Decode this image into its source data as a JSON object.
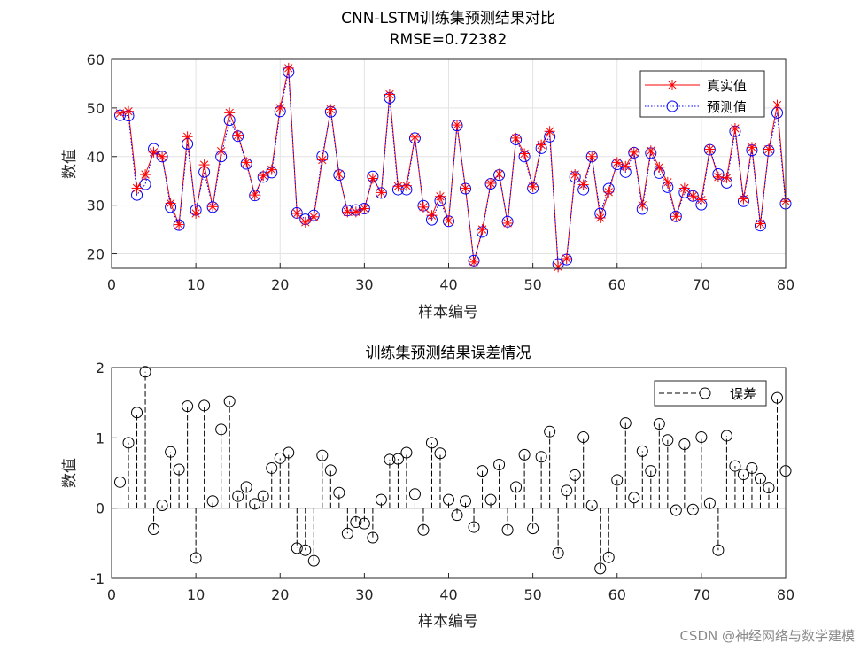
{
  "watermark": "CSDN @神经网络与数学建模",
  "chart_data": [
    {
      "type": "line",
      "title": "CNN-LSTM训练集预测结果对比",
      "subtitle": "RMSE=0.72382",
      "xlabel": "样本编号",
      "ylabel": "数值",
      "xlim": [
        0,
        80
      ],
      "ylim": [
        17,
        60
      ],
      "xticks": [
        "0",
        "10",
        "20",
        "30",
        "40",
        "50",
        "60",
        "70",
        "80"
      ],
      "yticks": [
        "20",
        "30",
        "40",
        "50",
        "60"
      ],
      "grid": true,
      "legend_position": "top-right",
      "colors": {
        "true": "#ff0000",
        "pred": "#0000ff"
      },
      "x": [
        1,
        2,
        3,
        4,
        5,
        6,
        7,
        8,
        9,
        10,
        11,
        12,
        13,
        14,
        15,
        16,
        17,
        18,
        19,
        20,
        21,
        22,
        23,
        24,
        25,
        26,
        27,
        28,
        29,
        30,
        31,
        32,
        33,
        34,
        35,
        36,
        37,
        38,
        39,
        40,
        41,
        42,
        43,
        44,
        45,
        46,
        47,
        48,
        49,
        50,
        51,
        52,
        53,
        54,
        55,
        56,
        57,
        58,
        59,
        60,
        61,
        62,
        63,
        64,
        65,
        66,
        67,
        68,
        69,
        70,
        71,
        72,
        73,
        74,
        75,
        76,
        77,
        78,
        79,
        80
      ],
      "series": [
        {
          "name": "真实值",
          "style": "red solid line, asterisk markers",
          "values": [
            48.9,
            49.3,
            33.5,
            36.3,
            40.9,
            40.0,
            30.4,
            26.0,
            44.1,
            28.3,
            38.3,
            29.7,
            41.1,
            49.0,
            44.4,
            38.8,
            32.1,
            36.1,
            37.3,
            50.0,
            58.2,
            28.3,
            26.5,
            27.6,
            39.3,
            49.7,
            36.4,
            28.6,
            28.6,
            29.3,
            35.5,
            32.6,
            52.8,
            33.9,
            34.0,
            44.0,
            29.6,
            27.9,
            31.8,
            26.8,
            46.5,
            33.5,
            18.3,
            25.0,
            34.5,
            36.4,
            26.3,
            43.8,
            40.6,
            33.8,
            42.4,
            45.2,
            17.3,
            19.0,
            36.3,
            34.2,
            40.0,
            27.4,
            32.7,
            38.8,
            38.0,
            40.9,
            30.0,
            41.2,
            37.8,
            34.7,
            27.7,
            33.5,
            31.9,
            31.1,
            41.5,
            35.8,
            35.6,
            45.8,
            31.3,
            41.9,
            26.2,
            41.5,
            50.6,
            30.8
          ]
        },
        {
          "name": "预测值",
          "style": "blue dotted line, circle markers",
          "values": [
            48.5,
            48.4,
            32.1,
            34.3,
            41.6,
            40.0,
            29.6,
            25.9,
            42.6,
            29.0,
            36.8,
            29.6,
            40.0,
            47.5,
            44.2,
            38.5,
            32.0,
            35.8,
            36.7,
            49.3,
            57.4,
            28.4,
            27.1,
            27.9,
            40.1,
            49.2,
            36.2,
            28.9,
            29.0,
            29.3,
            35.9,
            32.5,
            52.1,
            33.2,
            33.2,
            43.8,
            29.9,
            27.0,
            30.9,
            26.7,
            46.4,
            33.4,
            18.6,
            24.5,
            34.4,
            36.2,
            26.6,
            43.5,
            40.0,
            33.5,
            41.7,
            44.1,
            17.9,
            18.8,
            35.8,
            33.2,
            40.0,
            28.3,
            33.4,
            38.4,
            36.8,
            40.8,
            29.2,
            40.7,
            36.6,
            33.7,
            27.7,
            32.6,
            31.9,
            30.1,
            41.4,
            36.4,
            34.6,
            45.2,
            30.8,
            41.3,
            25.8,
            41.2,
            49.0,
            30.3
          ]
        }
      ]
    },
    {
      "type": "stem",
      "title": "训练集预测结果误差情况",
      "xlabel": "样本编号",
      "ylabel": "数值",
      "xlim": [
        0,
        80
      ],
      "ylim": [
        -1,
        2
      ],
      "xticks": [
        "0",
        "10",
        "20",
        "30",
        "40",
        "50",
        "60",
        "70",
        "80"
      ],
      "yticks": [
        "-1",
        "0",
        "1",
        "2"
      ],
      "grid": false,
      "legend_position": "top-right",
      "colors": {
        "stem": "#000000"
      },
      "x": [
        1,
        2,
        3,
        4,
        5,
        6,
        7,
        8,
        9,
        10,
        11,
        12,
        13,
        14,
        15,
        16,
        17,
        18,
        19,
        20,
        21,
        22,
        23,
        24,
        25,
        26,
        27,
        28,
        29,
        30,
        31,
        32,
        33,
        34,
        35,
        36,
        37,
        38,
        39,
        40,
        41,
        42,
        43,
        44,
        45,
        46,
        47,
        48,
        49,
        50,
        51,
        52,
        53,
        54,
        55,
        56,
        57,
        58,
        59,
        60,
        61,
        62,
        63,
        64,
        65,
        66,
        67,
        68,
        69,
        70,
        71,
        72,
        73,
        74,
        75,
        76,
        77,
        78,
        79,
        80
      ],
      "series": [
        {
          "name": "误差",
          "style": "black dashed stems, circle markers",
          "values": [
            0.37,
            0.93,
            1.36,
            1.94,
            -0.3,
            0.04,
            0.8,
            0.55,
            1.45,
            -0.71,
            1.46,
            0.1,
            1.12,
            1.52,
            0.17,
            0.3,
            0.06,
            0.17,
            0.57,
            0.71,
            0.79,
            -0.57,
            -0.6,
            -0.75,
            0.75,
            0.54,
            0.22,
            -0.36,
            -0.2,
            -0.22,
            -0.42,
            0.12,
            0.69,
            0.7,
            0.79,
            0.2,
            -0.31,
            0.93,
            0.78,
            0.12,
            -0.1,
            0.1,
            -0.27,
            0.53,
            0.12,
            0.62,
            -0.31,
            0.3,
            0.76,
            -0.29,
            0.73,
            1.09,
            -0.64,
            0.25,
            0.47,
            1.01,
            0.04,
            -0.86,
            -0.7,
            0.4,
            1.21,
            0.15,
            0.81,
            0.53,
            1.2,
            0.97,
            -0.03,
            0.91,
            -0.02,
            1.01,
            0.07,
            -0.6,
            1.03,
            0.6,
            0.48,
            0.57,
            0.42,
            0.29,
            1.57,
            0.53
          ]
        }
      ]
    }
  ]
}
